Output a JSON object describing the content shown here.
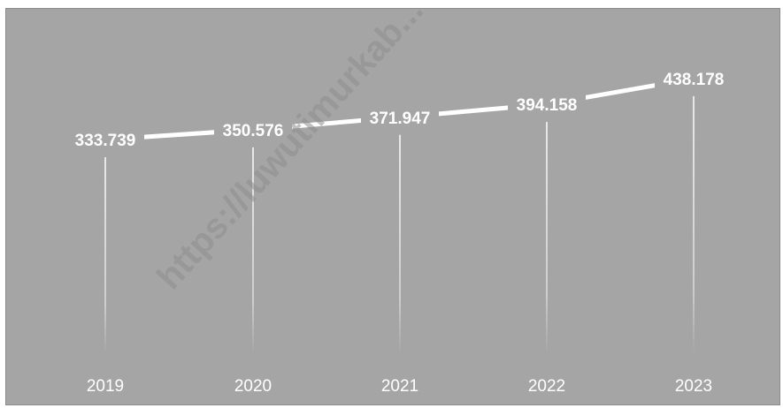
{
  "chart_data": {
    "type": "line",
    "categories": [
      "2019",
      "2020",
      "2021",
      "2022",
      "2023"
    ],
    "values": [
      333.739,
      350.576,
      371.947,
      394.158,
      438.178
    ],
    "data_labels": [
      "333.739",
      "350.576",
      "371.947",
      "394.158",
      "438.178"
    ],
    "title": "",
    "xlabel": "",
    "ylabel": "",
    "grid": false,
    "legend": "none",
    "colors": {
      "background": "#a5a5a5",
      "line": "#ffffff",
      "text": "#ffffff"
    }
  },
  "watermark": "https://luwutimurkab..."
}
